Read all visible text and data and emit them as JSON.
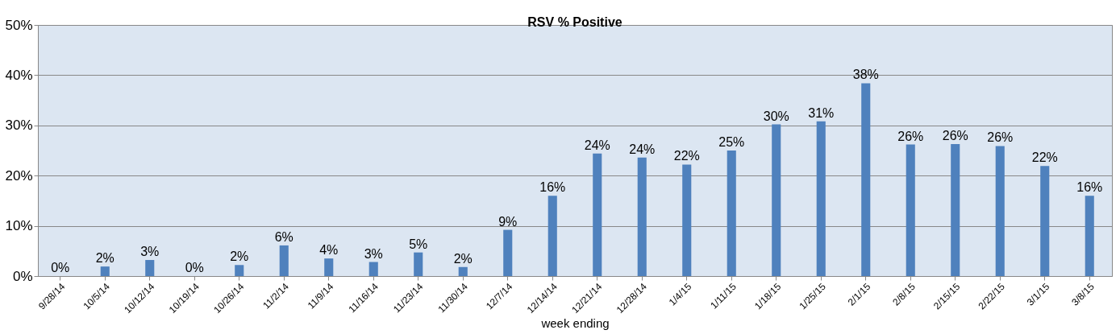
{
  "chart_data": {
    "type": "bar",
    "title": "RSV % Positive",
    "xlabel": "week ending",
    "categories": [
      "9/28/14",
      "10/5/14",
      "10/12/14",
      "10/19/14",
      "10/26/14",
      "11/2/14",
      "11/9/14",
      "11/16/14",
      "11/23/14",
      "11/30/14",
      "12/7/14",
      "12/14/14",
      "12/21/14",
      "12/28/14",
      "1/4/15",
      "1/11/15",
      "1/18/15",
      "1/25/15",
      "2/1/15",
      "2/8/15",
      "2/15/15",
      "2/22/15",
      "3/1/15",
      "3/8/15"
    ],
    "values": [
      0,
      1.9,
      3.2,
      0,
      2.2,
      6.1,
      3.5,
      2.8,
      4.7,
      1.8,
      9.2,
      16,
      24.4,
      23.6,
      22.2,
      25,
      30.2,
      30.8,
      38.4,
      26.2,
      26.3,
      25.9,
      21.9,
      16
    ],
    "value_labels": [
      "0%",
      "2%",
      "3%",
      "0%",
      "2%",
      "6%",
      "4%",
      "3%",
      "5%",
      "2%",
      "9%",
      "16%",
      "24%",
      "24%",
      "22%",
      "25%",
      "30%",
      "31%",
      "38%",
      "26%",
      "26%",
      "26%",
      "22%",
      "16%"
    ],
    "color": "#4f81bd",
    "ylim": [
      0,
      50
    ],
    "yticks": [
      {
        "value": 0,
        "label": "0%"
      },
      {
        "value": 10,
        "label": "10%"
      },
      {
        "value": 20,
        "label": "20%"
      },
      {
        "value": 30,
        "label": "30%"
      },
      {
        "value": 40,
        "label": "40%"
      },
      {
        "value": 50,
        "label": "50%"
      }
    ],
    "grid": "y"
  }
}
